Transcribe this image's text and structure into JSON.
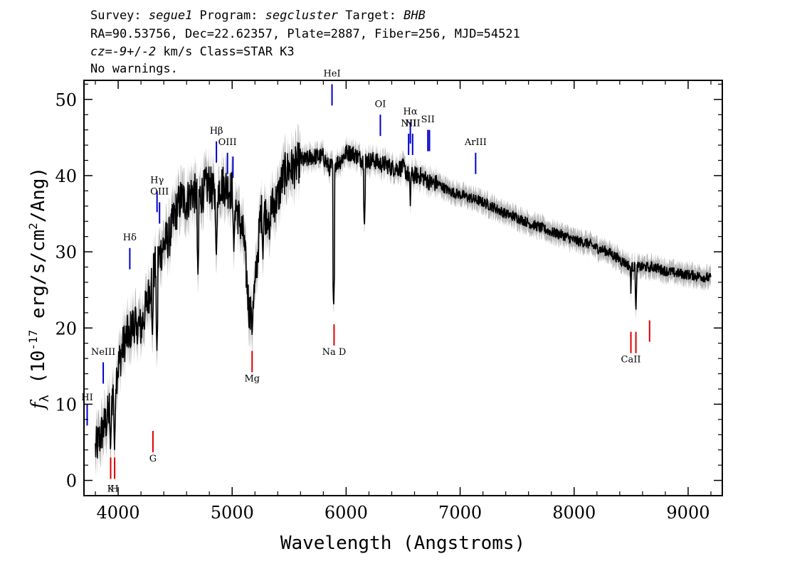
{
  "header": {
    "line1": [
      {
        "text": "Survey: ",
        "italic": false
      },
      {
        "text": "segue1",
        "italic": true
      },
      {
        "text": " Program: ",
        "italic": false
      },
      {
        "text": "segcluster",
        "italic": true
      },
      {
        "text": " Target: ",
        "italic": false
      },
      {
        "text": "BHB",
        "italic": true
      }
    ],
    "line2": "RA=90.53756, Dec=22.62357, Plate=2887, Fiber=256, MJD=54521",
    "line3": [
      {
        "text": "cz=",
        "italic": true
      },
      {
        "text": "-9",
        "italic": true
      },
      {
        "text": "+/-",
        "italic": false
      },
      {
        "text": "2",
        "italic": true
      },
      {
        "text": " km/s Class=STAR K3",
        "italic": false
      }
    ],
    "line4": "No warnings."
  },
  "chart_data": {
    "type": "line",
    "xlabel": "Wavelength (Angstroms)",
    "ylabel": "f_λ (10^-17 erg/s/cm^2/Ang)",
    "xlim": [
      3700,
      9300
    ],
    "ylim": [
      -2,
      52.5
    ],
    "x_ticks": [
      4000,
      5000,
      6000,
      7000,
      8000,
      9000
    ],
    "y_ticks": [
      0,
      10,
      20,
      30,
      40,
      50
    ],
    "grid": false,
    "colors": {
      "flux": "#000000",
      "error_band": "#b4b4b4",
      "emission": "#0000cc",
      "absorption": "#dd0000"
    },
    "series": [
      {
        "x": [
          3800,
          3850,
          3900,
          3950,
          4000,
          4050,
          4100,
          4150,
          4200,
          4250,
          4300,
          4350,
          4400,
          4450,
          4500,
          4550,
          4600,
          4650,
          4700,
          4750,
          4800,
          4850,
          4900,
          4950,
          5000,
          5050,
          5100,
          5150,
          5200,
          5250,
          5300,
          5350,
          5400,
          5450,
          5500,
          5550,
          5600,
          5650,
          5700,
          5750,
          5800,
          5850,
          5900,
          5950,
          6000,
          6050,
          6100,
          6150,
          6200,
          6250,
          6300,
          6350,
          6400,
          6450,
          6500,
          6550,
          6600,
          6650,
          6700,
          6750,
          6800,
          6900,
          7000,
          7100,
          7200,
          7300,
          7400,
          7500,
          7600,
          7700,
          7800,
          7900,
          8000,
          8100,
          8200,
          8300,
          8400,
          8450,
          8500,
          8550,
          8600,
          8650,
          8700,
          8800,
          8900,
          9000,
          9100,
          9200
        ],
        "y": [
          4,
          6,
          8,
          11,
          15,
          18,
          19.5,
          21,
          20,
          23,
          27,
          29,
          31,
          32,
          35,
          37,
          36.5,
          38,
          37,
          38,
          39,
          37,
          39,
          38.5,
          38,
          35,
          32,
          22,
          25,
          35,
          35,
          36,
          37,
          40,
          41,
          41,
          42,
          42,
          42.5,
          42.5,
          42.5,
          41,
          41.5,
          42,
          43,
          43,
          42.5,
          42,
          42,
          42,
          41.5,
          41.5,
          41,
          41,
          41,
          40,
          40,
          40,
          39.5,
          39,
          39,
          38,
          37.5,
          37,
          36.5,
          35.8,
          35,
          34.5,
          33.8,
          33.2,
          32.6,
          32.2,
          31.5,
          31.2,
          30.5,
          30,
          29,
          28.5,
          28,
          28,
          28,
          28,
          28,
          27.5,
          27.2,
          27,
          26.8,
          26.5
        ]
      }
    ],
    "absorption_features": [
      {
        "x": 8662,
        "value": 26.8
      },
      {
        "x": 8542,
        "value": 21.8
      },
      {
        "x": 8498,
        "value": 24.5
      },
      {
        "x": 5890,
        "value": 22.5
      },
      {
        "x": 5175,
        "value": 18.5
      },
      {
        "x": 4861,
        "value": 29
      },
      {
        "x": 4340,
        "value": 17
      },
      {
        "x": 4300,
        "value": 18.5
      },
      {
        "x": 4160,
        "value": 19
      },
      {
        "x": 4101,
        "value": 17
      },
      {
        "x": 3968,
        "value": 4
      },
      {
        "x": 3933,
        "value": 3.5
      },
      {
        "x": 6160,
        "value": 33
      },
      {
        "x": 6563,
        "value": 36
      },
      {
        "x": 5270,
        "value": 29
      },
      {
        "x": 5328,
        "value": 31
      },
      {
        "x": 5015,
        "value": 30
      },
      {
        "x": 4700,
        "value": 27
      }
    ],
    "emission_lines": [
      {
        "label": "HI",
        "x": 3728,
        "y_top": 10,
        "y_bot": 7.2,
        "label_y": 10.5
      },
      {
        "label": "NeIII",
        "x": 3869,
        "y_top": 15.5,
        "y_bot": 12.7,
        "label_y": 16.5
      },
      {
        "label": "Hδ",
        "x": 4102,
        "y_top": 30.5,
        "y_bot": 27.7,
        "label_y": 31.5
      },
      {
        "label": "Hγ",
        "x": 4341,
        "y_top": 38,
        "y_bot": 35.2,
        "label_y": 39
      },
      {
        "label": "OIII",
        "x": 4363,
        "y_top": 36.5,
        "y_bot": 33.7,
        "label_y": 37.5
      },
      {
        "label": "Hβ",
        "x": 4862,
        "y_top": 44.5,
        "y_bot": 41.7,
        "label_y": 45.5
      },
      {
        "label": "OIII",
        "x": 4959,
        "y_top": 43,
        "y_bot": 40.2,
        "label_y": 44
      },
      {
        "label": "",
        "x": 5007,
        "y_top": 42.5,
        "y_bot": 39.7,
        "label_y": 43.5
      },
      {
        "label": "HeI",
        "x": 5876,
        "y_top": 52,
        "y_bot": 49.2,
        "label_y": 53
      },
      {
        "label": "OI",
        "x": 6300,
        "y_top": 48,
        "y_bot": 45.2,
        "label_y": 49
      },
      {
        "label": "NII",
        "x": 6548,
        "y_top": 45.5,
        "y_bot": 42.7,
        "label_y": 46.5
      },
      {
        "label": "Hα",
        "x": 6563,
        "y_top": 47,
        "y_bot": 44.2,
        "label_y": 48
      },
      {
        "label": "NII",
        "x": 6583,
        "y_top": 45.5,
        "y_bot": 42.7,
        "label_y": 46.5
      },
      {
        "label": "SII",
        "x": 6717,
        "y_top": 46,
        "y_bot": 43.2,
        "label_y": 47
      },
      {
        "label": "",
        "x": 6731,
        "y_top": 46,
        "y_bot": 43.2,
        "label_y": 47
      },
      {
        "label": "ArIII",
        "x": 7136,
        "y_top": 43,
        "y_bot": 40.2,
        "label_y": 44
      }
    ],
    "absorption_lines": [
      {
        "label": "K",
        "x": 3934,
        "y_top": 3,
        "y_bot": 0.2,
        "label_y": -1.5
      },
      {
        "label": "H",
        "x": 3969,
        "y_top": 3,
        "y_bot": 0.2,
        "label_y": -1.5
      },
      {
        "label": "G",
        "x": 4305,
        "y_top": 6.5,
        "y_bot": 3.7,
        "label_y": 2.5
      },
      {
        "label": "Mg",
        "x": 5175,
        "y_top": 17,
        "y_bot": 14.2,
        "label_y": 13
      },
      {
        "label": "Na D",
        "x": 5894,
        "y_top": 20.5,
        "y_bot": 17.7,
        "label_y": 16.5
      },
      {
        "label": "CaII",
        "x": 8498,
        "y_top": 19.5,
        "y_bot": 16.7,
        "label_y": 15.5
      },
      {
        "label": "",
        "x": 8542,
        "y_top": 19.5,
        "y_bot": 16.7,
        "label_y": 15.5
      },
      {
        "label": "",
        "x": 8662,
        "y_top": 21,
        "y_bot": 18.2,
        "label_y": 17
      }
    ]
  }
}
